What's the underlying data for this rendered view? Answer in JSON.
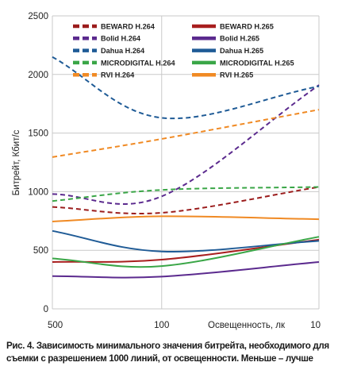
{
  "chart_data": {
    "type": "line",
    "x": [
      "500",
      "100",
      "10"
    ],
    "xlabel": "Освещенность, лк",
    "ylabel": "Битрейт, Кбит/с",
    "yticks": [
      "0",
      "500",
      "1000",
      "1500",
      "2000",
      "2500"
    ],
    "ylim": [
      0,
      2500
    ],
    "grid": true,
    "legend": "top",
    "series": [
      {
        "name": "BEWARD H.264",
        "color": "#9b1c1c",
        "dash": true,
        "values": [
          870,
          820,
          1040
        ]
      },
      {
        "name": "BEWARD H.265",
        "color": "#a81e1e",
        "dash": false,
        "values": [
          400,
          420,
          590
        ]
      },
      {
        "name": "Bolid H.264",
        "color": "#5b2a8e",
        "dash": true,
        "values": [
          980,
          960,
          1910
        ]
      },
      {
        "name": "Bolid H.265",
        "color": "#5b2a8e",
        "dash": false,
        "values": [
          280,
          275,
          400
        ]
      },
      {
        "name": "Dahua H.264",
        "color": "#1f5b96",
        "dash": true,
        "values": [
          2150,
          1630,
          1900
        ]
      },
      {
        "name": "Dahua H.265",
        "color": "#1f5b96",
        "dash": false,
        "values": [
          665,
          490,
          580
        ]
      },
      {
        "name": "MICRODIGITAL H.264",
        "color": "#3aa647",
        "dash": true,
        "values": [
          920,
          1015,
          1040
        ]
      },
      {
        "name": "MICRODIGITAL H.265",
        "color": "#3aa647",
        "dash": false,
        "values": [
          430,
          365,
          615
        ]
      },
      {
        "name": "RVI H.264",
        "color": "#f08a24",
        "dash": true,
        "values": [
          1295,
          1450,
          1700
        ]
      },
      {
        "name": "RVI H.265",
        "color": "#f08a24",
        "dash": false,
        "values": [
          745,
          790,
          765
        ]
      }
    ]
  },
  "caption": "Рис. 4. Зависимость минимального значения битрейта, необходимого для съемки с разрешением 1000 линий, от освещенности. Меньше – лучше"
}
